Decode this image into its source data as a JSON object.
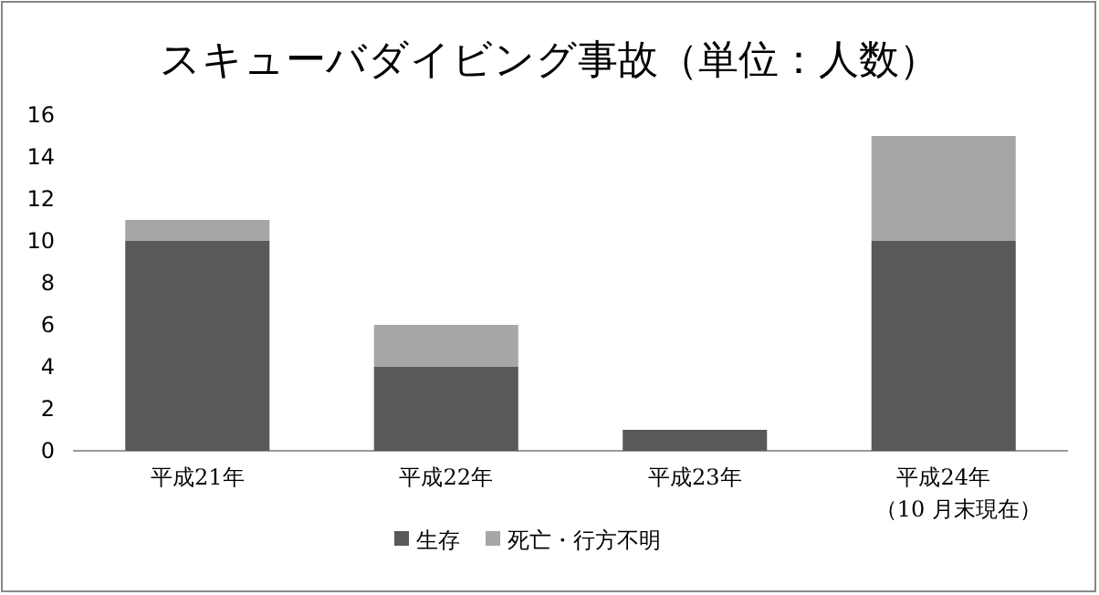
{
  "chart_data": {
    "type": "bar",
    "title": "スキューバダイビング事故（単位：人数）",
    "categories": [
      "平成21年",
      "平成22年",
      "平成23年",
      "平成24年"
    ],
    "stacked": true,
    "series": [
      {
        "name": "生存",
        "color": "#595959",
        "values": [
          10,
          4,
          1,
          10
        ]
      },
      {
        "name": "死亡・行方不明",
        "color": "#a6a6a6",
        "values": [
          1,
          2,
          0,
          5
        ]
      }
    ],
    "ylim": [
      0,
      16
    ],
    "yticks": [
      0,
      2,
      4,
      6,
      8,
      10,
      12,
      14,
      16
    ],
    "legend": "bottom",
    "annotations": [
      "（10 月末現在）"
    ]
  }
}
